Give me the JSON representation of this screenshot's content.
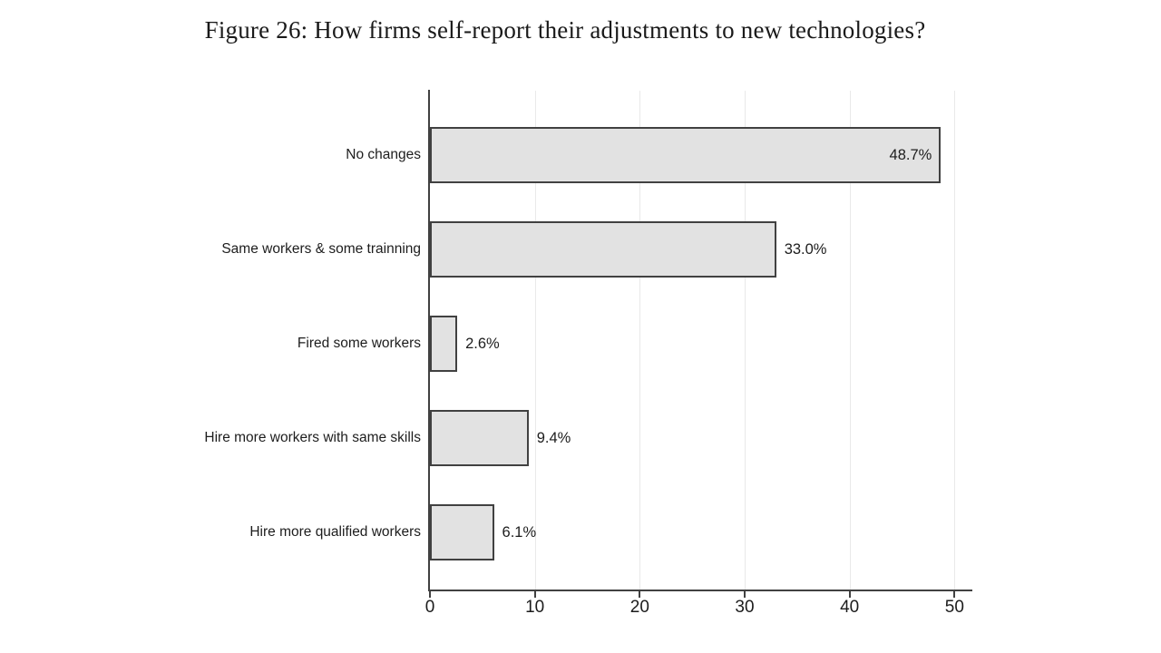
{
  "figure": {
    "title": "Figure 26: How firms self-report their adjustments to new technologies?"
  },
  "chart_data": {
    "type": "bar",
    "orientation": "horizontal",
    "title": "Figure 26: How firms self-report their adjustments to new technologies?",
    "categories": [
      "No changes",
      "Same workers & some trainning",
      "Fired some workers",
      "Hire more workers with same skills",
      "Hire more qualified workers"
    ],
    "values": [
      48.7,
      33.0,
      2.6,
      9.4,
      6.1
    ],
    "value_labels": [
      "48.7%",
      "33.0%",
      "2.6%",
      "9.4%",
      "6.1%"
    ],
    "x_ticks": [
      "0",
      "10",
      "20",
      "30",
      "40",
      "50"
    ],
    "x_tick_values": [
      0,
      10,
      20,
      30,
      40,
      50
    ],
    "xlim": [
      0,
      51.7
    ],
    "xlabel": "",
    "ylabel": "",
    "grid": true,
    "legend": "none",
    "colors": {
      "bar_fill": "#e2e2e2",
      "bar_border": "#414141",
      "axis": "#414141",
      "gridline": "#e9e9e9",
      "text": "#1d1d1d"
    }
  }
}
